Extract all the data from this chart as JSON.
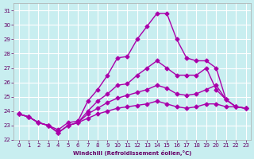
{
  "xlabel": "Windchill (Refroidissement éolien,°C)",
  "bg_color": "#c8eef0",
  "grid_color": "#ffffff",
  "line_color": "#aa00aa",
  "xlim": [
    -0.5,
    23.5
  ],
  "ylim": [
    22,
    31.5
  ],
  "yticks": [
    22,
    23,
    24,
    25,
    26,
    27,
    28,
    29,
    30,
    31
  ],
  "xticks": [
    0,
    1,
    2,
    3,
    4,
    5,
    6,
    7,
    8,
    9,
    10,
    11,
    12,
    13,
    14,
    15,
    16,
    17,
    18,
    19,
    20,
    21,
    22,
    23
  ],
  "series": [
    {
      "x": [
        0,
        1,
        2,
        3,
        4,
        5,
        6,
        7,
        8,
        9,
        10,
        11,
        12,
        13,
        14,
        15,
        16,
        17,
        18,
        19,
        20,
        21,
        22,
        23
      ],
      "y": [
        23.8,
        23.6,
        23.2,
        23.0,
        22.7,
        23.2,
        23.3,
        24.7,
        25.5,
        26.5,
        27.7,
        27.8,
        29.0,
        29.9,
        30.8,
        30.8,
        29.0,
        27.7,
        27.5,
        27.5,
        27.0,
        24.8,
        24.3,
        24.2
      ],
      "marker": "D",
      "markersize": 2.5,
      "linewidth": 1.0
    },
    {
      "x": [
        0,
        1,
        2,
        3,
        4,
        5,
        6,
        7,
        8,
        9,
        10,
        11,
        12,
        13,
        14,
        15,
        16,
        17,
        18,
        19,
        20,
        21,
        22,
        23
      ],
      "y": [
        23.8,
        23.6,
        23.2,
        23.0,
        22.5,
        23.0,
        23.2,
        24.0,
        24.7,
        25.2,
        25.8,
        25.9,
        26.5,
        27.0,
        27.5,
        27.0,
        26.5,
        26.5,
        26.5,
        27.0,
        25.5,
        24.8,
        24.3,
        24.2
      ],
      "marker": "D",
      "markersize": 2.5,
      "linewidth": 1.0
    },
    {
      "x": [
        0,
        1,
        2,
        3,
        4,
        5,
        6,
        7,
        8,
        9,
        10,
        11,
        12,
        13,
        14,
        15,
        16,
        17,
        18,
        19,
        20,
        21,
        22,
        23
      ],
      "y": [
        23.8,
        23.6,
        23.2,
        23.0,
        22.5,
        23.0,
        23.2,
        23.8,
        24.2,
        24.6,
        24.9,
        25.1,
        25.3,
        25.5,
        25.8,
        25.6,
        25.2,
        25.1,
        25.2,
        25.5,
        25.8,
        24.8,
        24.3,
        24.2
      ],
      "marker": "D",
      "markersize": 2.5,
      "linewidth": 1.0
    },
    {
      "x": [
        0,
        1,
        2,
        3,
        4,
        5,
        6,
        7,
        8,
        9,
        10,
        11,
        12,
        13,
        14,
        15,
        16,
        17,
        18,
        19,
        20,
        21,
        22,
        23
      ],
      "y": [
        23.8,
        23.6,
        23.2,
        23.0,
        22.5,
        23.0,
        23.2,
        23.5,
        23.8,
        24.0,
        24.2,
        24.3,
        24.4,
        24.5,
        24.7,
        24.5,
        24.3,
        24.2,
        24.3,
        24.5,
        24.5,
        24.3,
        24.3,
        24.2
      ],
      "marker": "D",
      "markersize": 2.5,
      "linewidth": 1.0
    }
  ]
}
